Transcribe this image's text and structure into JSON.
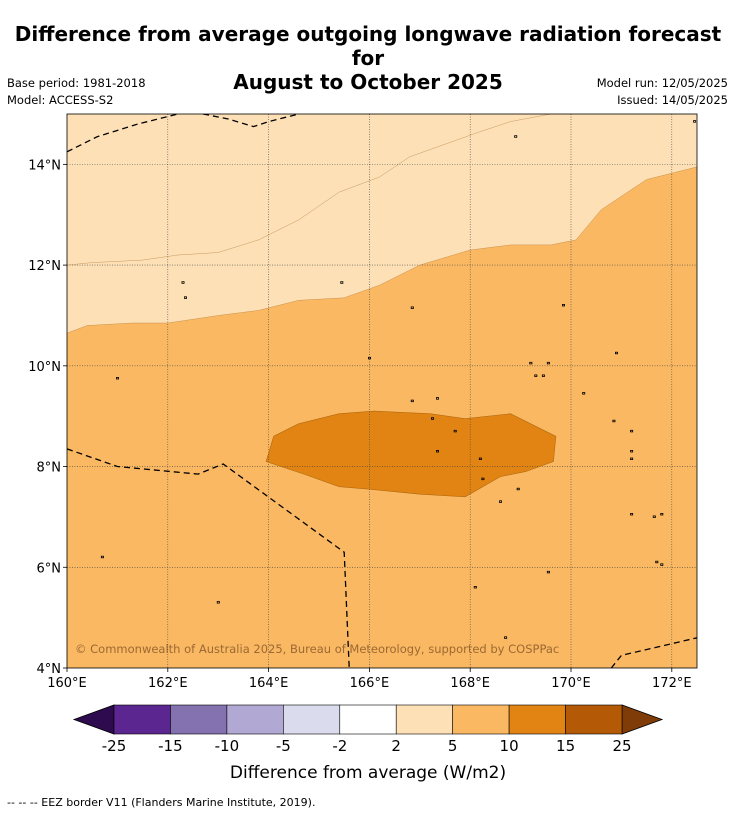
{
  "chart_data": {
    "type": "map",
    "title_line1": "Difference from average outgoing longwave radiation forecast for",
    "title_line2": "August to October 2025",
    "base_period": "Base period: 1981-2018",
    "model": "Model: ACCESS-S2",
    "model_run": "Model run: 12/05/2025",
    "issued": "Issued: 14/05/2025",
    "copyright": "© Commonwealth of Australia 2025, Bureau of Meteorology, supported by COSPPac",
    "lon_range": [
      160,
      172.5
    ],
    "lat_range": [
      4,
      15
    ],
    "x_ticks": [
      {
        "value": 160,
        "label": "160°E"
      },
      {
        "value": 162,
        "label": "162°E"
      },
      {
        "value": 164,
        "label": "164°E"
      },
      {
        "value": 166,
        "label": "166°E"
      },
      {
        "value": 168,
        "label": "168°E"
      },
      {
        "value": 170,
        "label": "170°E"
      },
      {
        "value": 172,
        "label": "172°E"
      }
    ],
    "y_ticks": [
      {
        "value": 4,
        "label": "4°N"
      },
      {
        "value": 6,
        "label": "6°N"
      },
      {
        "value": 8,
        "label": "8°N"
      },
      {
        "value": 10,
        "label": "10°N"
      },
      {
        "value": 12,
        "label": "12°N"
      },
      {
        "value": 14,
        "label": "14°N"
      }
    ],
    "regions": [
      {
        "bin": "5 to 10",
        "color": "#fbb862",
        "coords": [
          [
            160,
            4
          ],
          [
            172.5,
            4
          ],
          [
            172.5,
            15
          ],
          [
            160,
            15
          ]
        ]
      },
      {
        "bin": "2 to 5",
        "color": "#fde0b6",
        "coords": [
          [
            160,
            15
          ],
          [
            172.5,
            15
          ],
          [
            172.5,
            13.95
          ],
          [
            171.5,
            13.7
          ],
          [
            170.6,
            13.1
          ],
          [
            170.1,
            12.5
          ],
          [
            169.6,
            12.4
          ],
          [
            168.8,
            12.4
          ],
          [
            168,
            12.3
          ],
          [
            167,
            12
          ],
          [
            166.2,
            11.6
          ],
          [
            165.5,
            11.35
          ],
          [
            164.6,
            11.3
          ],
          [
            163.8,
            11.1
          ],
          [
            163,
            11
          ],
          [
            162,
            10.85
          ],
          [
            161.3,
            10.85
          ],
          [
            160.4,
            10.8
          ],
          [
            160,
            10.65
          ]
        ]
      },
      {
        "bin": "10 to 15",
        "color": "#e18413",
        "coords": [
          [
            164.1,
            8.6
          ],
          [
            164.6,
            8.85
          ],
          [
            165.4,
            9.05
          ],
          [
            166.1,
            9.1
          ],
          [
            167.2,
            9.05
          ],
          [
            167.9,
            8.95
          ],
          [
            168.8,
            9.05
          ],
          [
            169.3,
            8.8
          ],
          [
            169.7,
            8.6
          ],
          [
            169.65,
            8.1
          ],
          [
            169.1,
            7.9
          ],
          [
            168.6,
            7.8
          ],
          [
            167.9,
            7.4
          ],
          [
            167,
            7.45
          ],
          [
            166,
            7.55
          ],
          [
            165.4,
            7.6
          ],
          [
            164.7,
            7.85
          ],
          [
            163.95,
            8.1
          ]
        ]
      }
    ],
    "contour_lines": [
      [
        [
          160,
          12
        ],
        [
          160.5,
          12.05
        ],
        [
          161.5,
          12.1
        ],
        [
          162.2,
          12.2
        ],
        [
          163,
          12.25
        ],
        [
          163.8,
          12.5
        ],
        [
          164.6,
          12.9
        ],
        [
          165.4,
          13.45
        ],
        [
          166.2,
          13.75
        ],
        [
          166.8,
          14.15
        ],
        [
          167.5,
          14.4
        ],
        [
          168.2,
          14.65
        ],
        [
          168.8,
          14.85
        ],
        [
          169.6,
          15
        ]
      ],
      [
        [
          160,
          10.65
        ],
        [
          160.4,
          10.8
        ],
        [
          161.3,
          10.85
        ],
        [
          162,
          10.85
        ],
        [
          163,
          11
        ],
        [
          163.8,
          11.1
        ],
        [
          164.6,
          11.3
        ],
        [
          165.5,
          11.35
        ],
        [
          166.2,
          11.6
        ],
        [
          167,
          12
        ],
        [
          168,
          12.3
        ],
        [
          168.8,
          12.4
        ],
        [
          169.6,
          12.4
        ],
        [
          170.1,
          12.5
        ],
        [
          170.6,
          13.1
        ],
        [
          171.5,
          13.7
        ],
        [
          172.5,
          13.95
        ]
      ]
    ],
    "eez_borders": [
      [
        [
          160,
          14.25
        ],
        [
          160.6,
          14.55
        ],
        [
          161.4,
          14.8
        ],
        [
          162.2,
          15
        ]
      ],
      [
        [
          162.7,
          15
        ],
        [
          163.2,
          14.9
        ],
        [
          163.7,
          14.75
        ],
        [
          164,
          14.85
        ],
        [
          164.6,
          15
        ]
      ],
      [
        [
          160,
          8.35
        ],
        [
          161,
          8
        ],
        [
          162.6,
          7.85
        ],
        [
          163.1,
          8.05
        ],
        [
          165.5,
          6.3
        ],
        [
          165.6,
          4
        ]
      ],
      [
        [
          170.8,
          4
        ],
        [
          171,
          4.25
        ],
        [
          172.5,
          4.6
        ]
      ]
    ],
    "colorbar": {
      "bins": [
        {
          "from": "-25",
          "to": "-15",
          "color": "#5b2690"
        },
        {
          "from": "-15",
          "to": "-10",
          "color": "#8472b0"
        },
        {
          "from": "-10",
          "to": "-5",
          "color": "#b1a9d3"
        },
        {
          "from": "-5",
          "to": "-2",
          "color": "#dadbed"
        },
        {
          "from": "-2",
          "to": "2",
          "color": "#ffffff"
        },
        {
          "from": "2",
          "to": "5",
          "color": "#fde0b6"
        },
        {
          "from": "5",
          "to": "10",
          "color": "#fbb862"
        },
        {
          "from": "10",
          "to": "15",
          "color": "#e18413"
        },
        {
          "from": "15",
          "to": "25",
          "color": "#b45a06"
        }
      ],
      "tick_labels": [
        "-25",
        "-15",
        "-10",
        "-5",
        "-2",
        "2",
        "5",
        "10",
        "15",
        "25"
      ],
      "under_color": "#2e0b4f",
      "over_color": "#7f3b08",
      "label": "Difference from average (W/m2)"
    },
    "footer_note": "--  --  -- EEZ border V11 (Flanders Marine Institute, 2019)."
  }
}
